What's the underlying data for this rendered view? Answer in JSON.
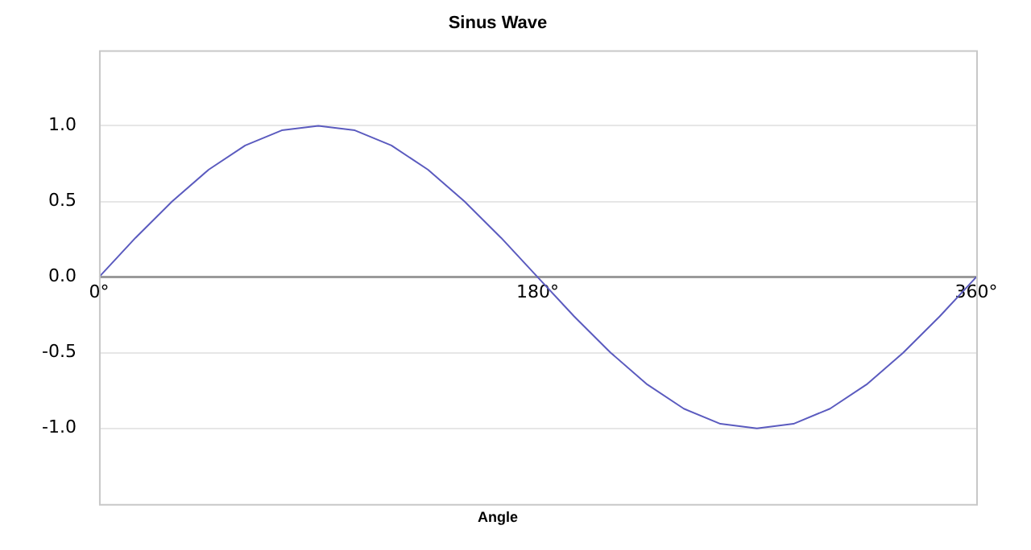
{
  "chart_data": {
    "type": "line",
    "title": "Sinus Wave",
    "xlabel": "Angle",
    "x": [
      0,
      15,
      30,
      45,
      60,
      75,
      90,
      105,
      120,
      135,
      150,
      165,
      180,
      195,
      210,
      225,
      240,
      255,
      270,
      285,
      300,
      315,
      330,
      345,
      360
    ],
    "series": [
      {
        "color": "#5b5bbf",
        "values": [
          0,
          0.26,
          0.5,
          0.71,
          0.87,
          0.97,
          1,
          0.97,
          0.87,
          0.71,
          0.5,
          0.26,
          0,
          -0.26,
          -0.5,
          -0.71,
          -0.87,
          -0.97,
          -1,
          -0.97,
          -0.87,
          -0.71,
          -0.5,
          -0.26,
          0
        ]
      }
    ],
    "xlim": [
      0,
      360
    ],
    "xticks": [
      {
        "value": 0,
        "label": "0°"
      },
      {
        "value": 180,
        "label": "180°"
      },
      {
        "value": 360,
        "label": "360°"
      }
    ],
    "ylim": [
      -1.5,
      1.5
    ],
    "yticks": [
      {
        "value": -1,
        "label": "-1.0"
      },
      {
        "value": -0.5,
        "label": "-0.5"
      },
      {
        "value": 0,
        "label": "0.0"
      },
      {
        "value": 0.5,
        "label": "0.5"
      },
      {
        "value": 1,
        "label": "1.0"
      }
    ],
    "grid": "y",
    "legend": false,
    "marker": "none",
    "line_style": "solid"
  }
}
